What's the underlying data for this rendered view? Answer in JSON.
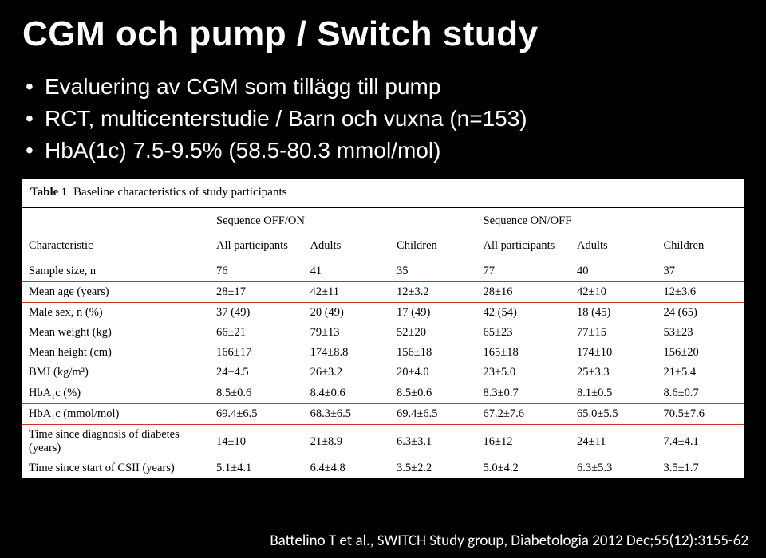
{
  "title": "CGM och pump / Switch study",
  "bullets": [
    "Evaluering av CGM som tillägg till pump",
    "RCT, multicenterstudie / Barn och vuxna (n=153)",
    "HbA(1c) 7.5-9.5% (58.5-80.3 mmol/mol)"
  ],
  "table": {
    "caption_bold": "Table 1",
    "caption_rest": "Baseline characteristics of study participants",
    "group_headers": [
      "Sequence OFF/ON",
      "Sequence ON/OFF"
    ],
    "col_headers": [
      "Characteristic",
      "All participants",
      "Adults",
      "Children",
      "All participants",
      "Adults",
      "Children"
    ],
    "rows": [
      {
        "cells": [
          "Sample size, n",
          "76",
          "41",
          "35",
          "77",
          "40",
          "37"
        ],
        "hl": false
      },
      {
        "cells": [
          "Mean age (years)",
          "28±17",
          "42±11",
          "12±3.2",
          "28±16",
          "42±10",
          "12±3.6"
        ],
        "hl": true
      },
      {
        "cells": [
          "Male sex, n (%)",
          "37 (49)",
          "20 (49)",
          "17 (49)",
          "42 (54)",
          "18 (45)",
          "24 (65)"
        ],
        "hl": false
      },
      {
        "cells": [
          "Mean weight (kg)",
          "66±21",
          "79±13",
          "52±20",
          "65±23",
          "77±15",
          "53±23"
        ],
        "hl": false
      },
      {
        "cells": [
          "Mean height (cm)",
          "166±17",
          "174±8.8",
          "156±18",
          "165±18",
          "174±10",
          "156±20"
        ],
        "hl": false
      },
      {
        "cells": [
          "BMI (kg/m²)",
          "24±4.5",
          "26±3.2",
          "20±4.0",
          "23±5.0",
          "25±3.3",
          "21±5.4"
        ],
        "hl": false
      },
      {
        "cells": [
          "HbA₁c (%)",
          "8.5±0.6",
          "8.4±0.6",
          "8.5±0.6",
          "8.3±0.7",
          "8.1±0.5",
          "8.6±0.7"
        ],
        "hl": true
      },
      {
        "cells": [
          "HbA₁c (mmol/mol)",
          "69.4±6.5",
          "68.3±6.5",
          "69.4±6.5",
          "67.2±7.6",
          "65.0±5.5",
          "70.5±7.6"
        ],
        "hl": true
      },
      {
        "cells": [
          "Time since diagnosis of diabetes (years)",
          "14±10",
          "21±8.9",
          "6.3±3.1",
          "16±12",
          "24±11",
          "7.4±4.1"
        ],
        "hl": false
      },
      {
        "cells": [
          "Time since start of CSII (years)",
          "5.1±4.1",
          "6.4±4.8",
          "3.5±2.2",
          "5.0±4.2",
          "6.3±5.3",
          "3.5±1.7"
        ],
        "hl": false
      }
    ]
  },
  "citation": "Battelino T et al., SWITCH Study group, Diabetologia 2012 Dec;55(12):3155-62",
  "colors": {
    "background": "#000000",
    "text": "#ffffff",
    "table_bg": "#ffffff",
    "table_text": "#000000",
    "highlight_border": "#c0392b"
  }
}
